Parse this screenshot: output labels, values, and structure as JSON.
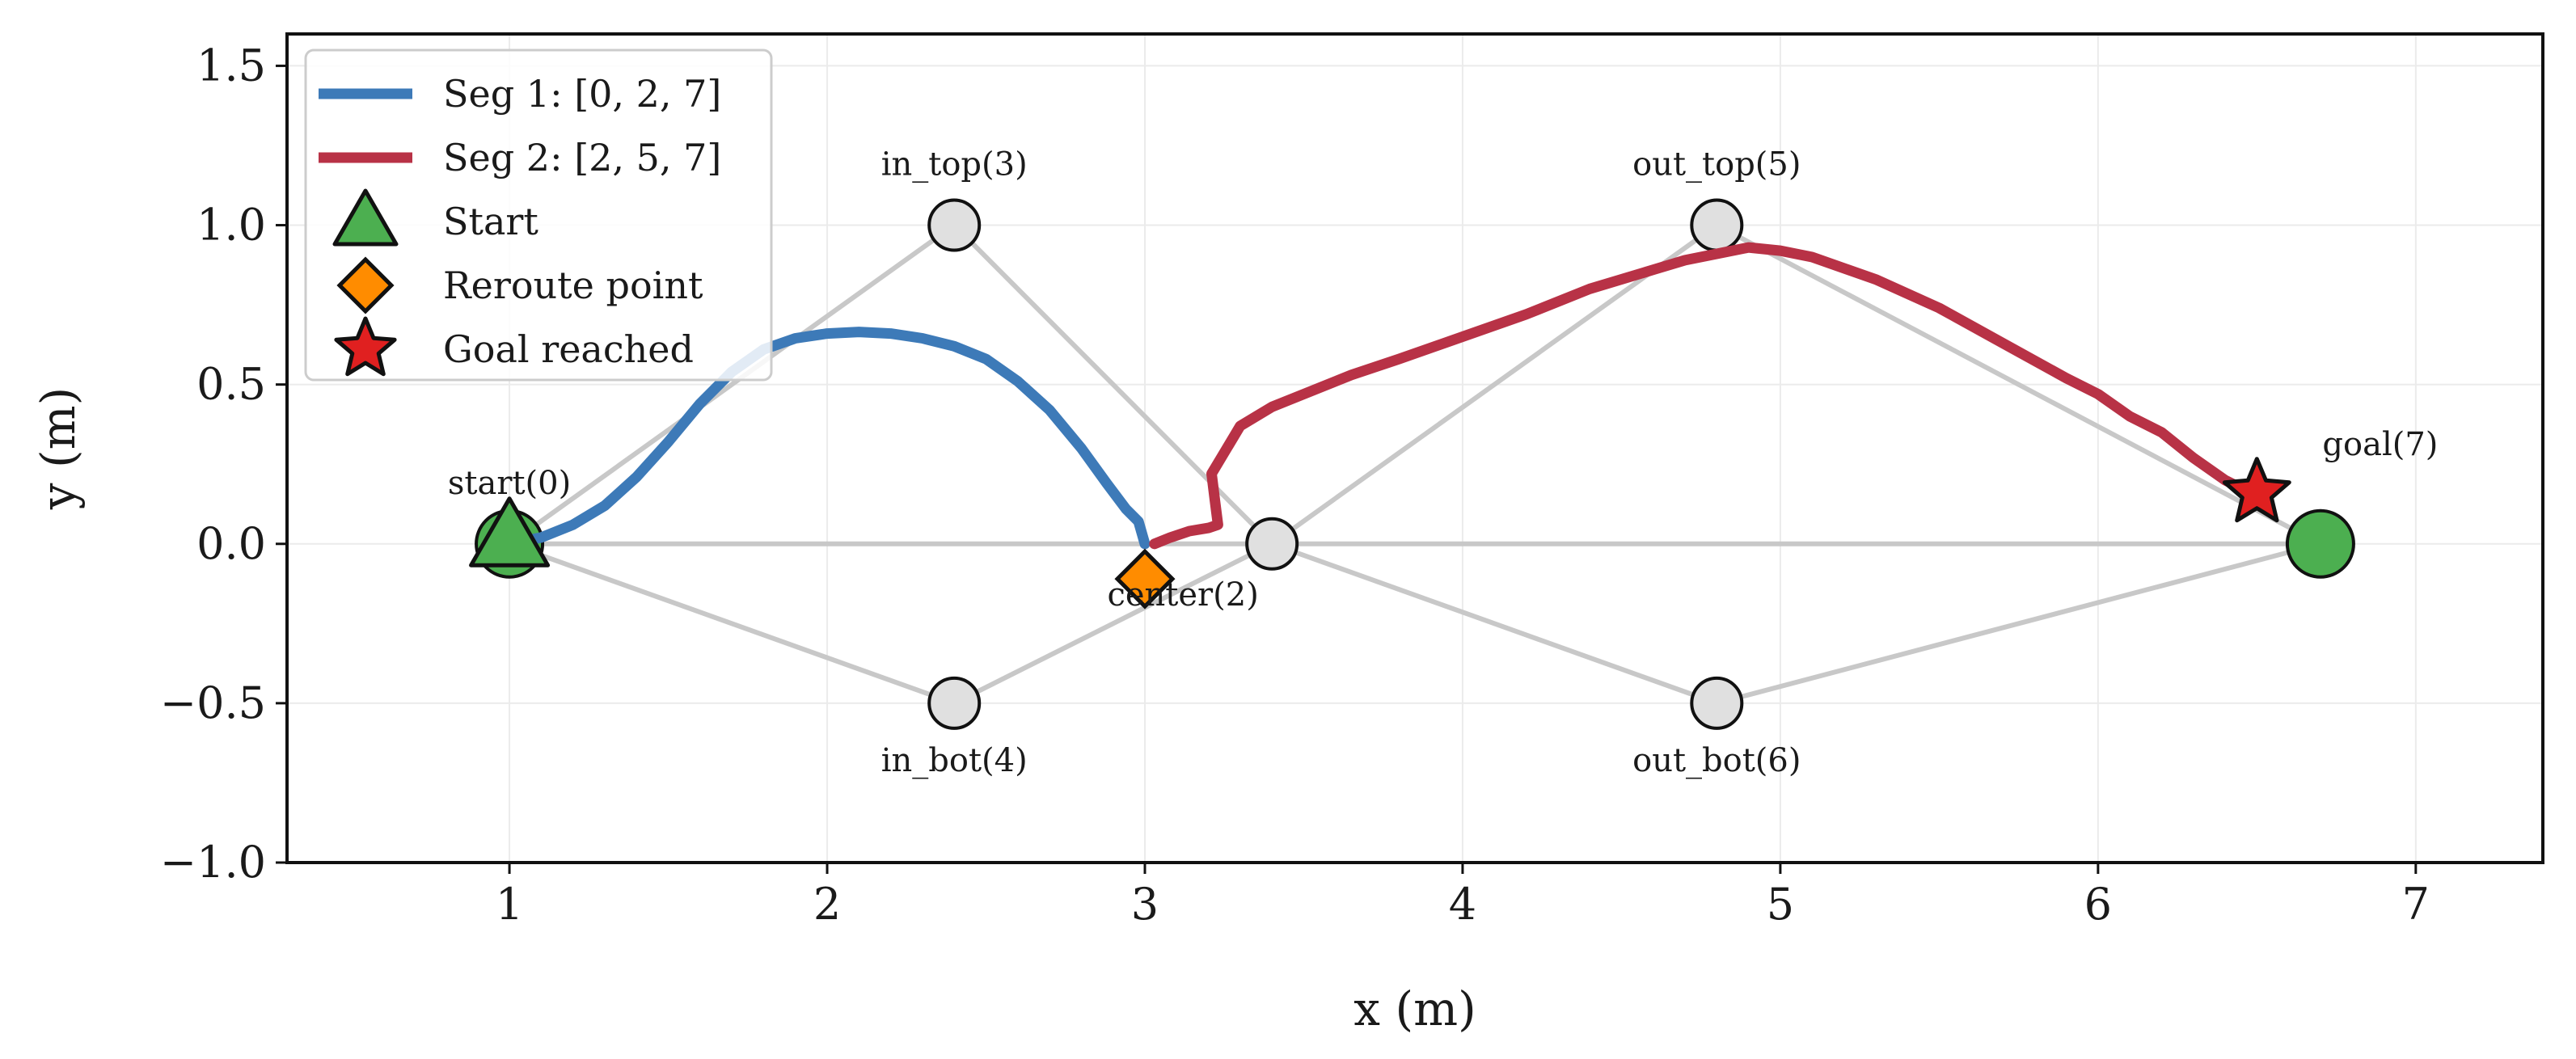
{
  "chart_data": {
    "type": "line",
    "title": "",
    "xlabel": "x (m)",
    "ylabel": "y (m)",
    "xlim": [
      0.3,
      7.4
    ],
    "ylim": [
      -1.0,
      1.6
    ],
    "xticks": [
      1,
      2,
      3,
      4,
      5,
      6,
      7
    ],
    "yticks": [
      -1.0,
      -0.5,
      0.0,
      0.5,
      1.0,
      1.5
    ],
    "xtick_labels": [
      "1",
      "2",
      "3",
      "4",
      "5",
      "6",
      "7"
    ],
    "ytick_labels": [
      "−1.0",
      "−0.5",
      "0.0",
      "0.5",
      "1.0",
      "1.5"
    ],
    "grid": true,
    "legend_position": "top-left",
    "colors": {
      "seg1": "#3d7ab8",
      "seg2": "#b83246",
      "node_fill": "#e0e0e0",
      "goal_node_fill": "#4caf50",
      "edge": "#c8c8c8",
      "start_marker": "#4caf50",
      "reroute_marker": "#ff8c00",
      "goal_marker": "#e02020"
    },
    "nodes": [
      {
        "id": 0,
        "label": "start(0)",
        "x": 1.0,
        "y": 0.0,
        "label_pos": "above"
      },
      {
        "id": 2,
        "label": "center(2)",
        "x": 3.4,
        "y": 0.0,
        "label_pos": "below-left"
      },
      {
        "id": 3,
        "label": "in_top(3)",
        "x": 2.4,
        "y": 1.0,
        "label_pos": "above"
      },
      {
        "id": 4,
        "label": "in_bot(4)",
        "x": 2.4,
        "y": -0.5,
        "label_pos": "below"
      },
      {
        "id": 5,
        "label": "out_top(5)",
        "x": 4.8,
        "y": 1.0,
        "label_pos": "above"
      },
      {
        "id": 6,
        "label": "out_bot(6)",
        "x": 4.8,
        "y": -0.5,
        "label_pos": "below"
      },
      {
        "id": 7,
        "label": "goal(7)",
        "x": 6.7,
        "y": 0.0,
        "label_pos": "above-right"
      }
    ],
    "edges": [
      [
        0,
        2
      ],
      [
        0,
        3
      ],
      [
        0,
        4
      ],
      [
        3,
        2
      ],
      [
        4,
        2
      ],
      [
        2,
        5
      ],
      [
        2,
        6
      ],
      [
        2,
        7
      ],
      [
        5,
        7
      ],
      [
        6,
        7
      ]
    ],
    "series": [
      {
        "name": "Seg 1: [0, 2, 7]",
        "x": [
          1.0,
          1.1,
          1.2,
          1.3,
          1.4,
          1.5,
          1.6,
          1.7,
          1.8,
          1.9,
          2.0,
          2.1,
          2.2,
          2.3,
          2.4,
          2.5,
          2.6,
          2.7,
          2.8,
          2.88,
          2.94,
          2.98,
          3.0
        ],
        "y": [
          0.0,
          0.02,
          0.06,
          0.12,
          0.21,
          0.32,
          0.44,
          0.54,
          0.61,
          0.645,
          0.66,
          0.665,
          0.66,
          0.645,
          0.62,
          0.58,
          0.51,
          0.42,
          0.3,
          0.19,
          0.11,
          0.07,
          0.0
        ]
      },
      {
        "name": "Seg 2: [2, 5, 7]",
        "x": [
          3.03,
          3.08,
          3.14,
          3.2,
          3.23,
          3.22,
          3.21,
          3.24,
          3.3,
          3.4,
          3.5,
          3.65,
          3.8,
          4.0,
          4.2,
          4.4,
          4.6,
          4.7,
          4.8,
          4.9,
          5.0,
          5.1,
          5.3,
          5.5,
          5.7,
          5.9,
          6.0,
          6.1,
          6.2,
          6.3,
          6.4,
          6.5
        ],
        "y": [
          0.0,
          0.02,
          0.04,
          0.05,
          0.06,
          0.14,
          0.22,
          0.27,
          0.37,
          0.43,
          0.47,
          0.53,
          0.58,
          0.65,
          0.72,
          0.8,
          0.86,
          0.89,
          0.91,
          0.93,
          0.92,
          0.9,
          0.83,
          0.74,
          0.63,
          0.52,
          0.47,
          0.4,
          0.35,
          0.27,
          0.2,
          0.15
        ]
      }
    ],
    "markers": [
      {
        "name": "Start",
        "shape": "triangle",
        "x": 1.0,
        "y": 0.0
      },
      {
        "name": "Reroute point",
        "shape": "diamond",
        "x": 3.0,
        "y": -0.11
      },
      {
        "name": "Goal reached",
        "shape": "star",
        "x": 6.5,
        "y": 0.16
      }
    ],
    "legend": [
      {
        "label": "Seg 1: [0, 2, 7]",
        "kind": "line",
        "color_key": "seg1"
      },
      {
        "label": "Seg 2: [2, 5, 7]",
        "kind": "line",
        "color_key": "seg2"
      },
      {
        "label": "Start",
        "kind": "triangle",
        "color_key": "start_marker"
      },
      {
        "label": "Reroute point",
        "kind": "diamond",
        "color_key": "reroute_marker"
      },
      {
        "label": "Goal reached",
        "kind": "star",
        "color_key": "goal_marker"
      }
    ]
  }
}
